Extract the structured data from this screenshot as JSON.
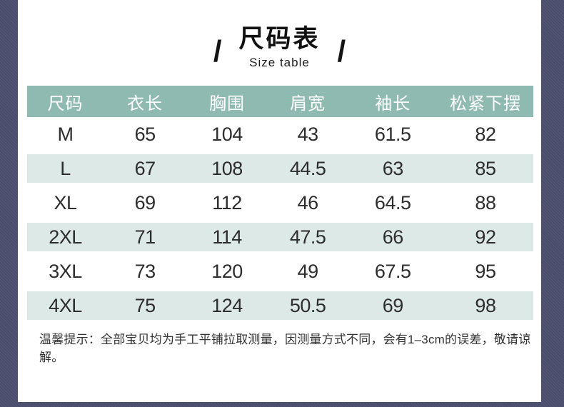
{
  "page": {
    "background_color": "#4d5170",
    "panel_color": "#ffffff"
  },
  "title": {
    "text": "尺码表",
    "subtitle": "Size table",
    "slash": "/"
  },
  "table": {
    "header_bg": "#8fbab2",
    "stripe_bg": "#dde9e7",
    "columns": [
      "尺码",
      "衣长",
      "胸围",
      "肩宽",
      "袖长",
      "松紧下摆"
    ],
    "rows": [
      {
        "size": "M",
        "values": [
          "65",
          "104",
          "43",
          "61.5",
          "82"
        ]
      },
      {
        "size": "L",
        "values": [
          "67",
          "108",
          "44.5",
          "63",
          "85"
        ]
      },
      {
        "size": "XL",
        "values": [
          "69",
          "112",
          "46",
          "64.5",
          "88"
        ]
      },
      {
        "size": "2XL",
        "values": [
          "71",
          "114",
          "47.5",
          "66",
          "92"
        ]
      },
      {
        "size": "3XL",
        "values": [
          "73",
          "120",
          "49",
          "67.5",
          "95"
        ]
      },
      {
        "size": "4XL",
        "values": [
          "75",
          "124",
          "50.5",
          "69",
          "98"
        ]
      }
    ]
  },
  "note": {
    "text": "温馨提示：全部宝贝均为手工平铺拉取测量，因测量方式不同，会有1–3cm的误差，敬请谅解。"
  }
}
